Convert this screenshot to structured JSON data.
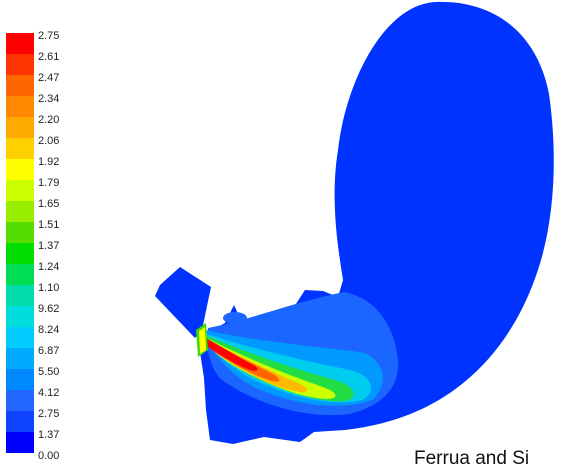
{
  "legend": {
    "colors": [
      "#ff0000",
      "#ff3300",
      "#ff6600",
      "#ff8800",
      "#ffaa00",
      "#ffd000",
      "#ffff00",
      "#ccff00",
      "#99ee00",
      "#55dd00",
      "#00dd00",
      "#00dd55",
      "#00ddaa",
      "#00dddd",
      "#00ccff",
      "#00aaff",
      "#0088ff",
      "#2266ff",
      "#1144ff",
      "#0000ff"
    ],
    "labels": [
      "2.75",
      "2.61",
      "2.47",
      "2.34",
      "2.20",
      "2.06",
      "1.92",
      "1.79",
      "1.65",
      "1.51",
      "1.37",
      "1.24",
      "1.10",
      "9.62",
      "8.24",
      "6.87",
      "5.50",
      "4.12",
      "2.75",
      "1.37",
      "0.00"
    ]
  },
  "caption": "Ferrua and Si"
}
